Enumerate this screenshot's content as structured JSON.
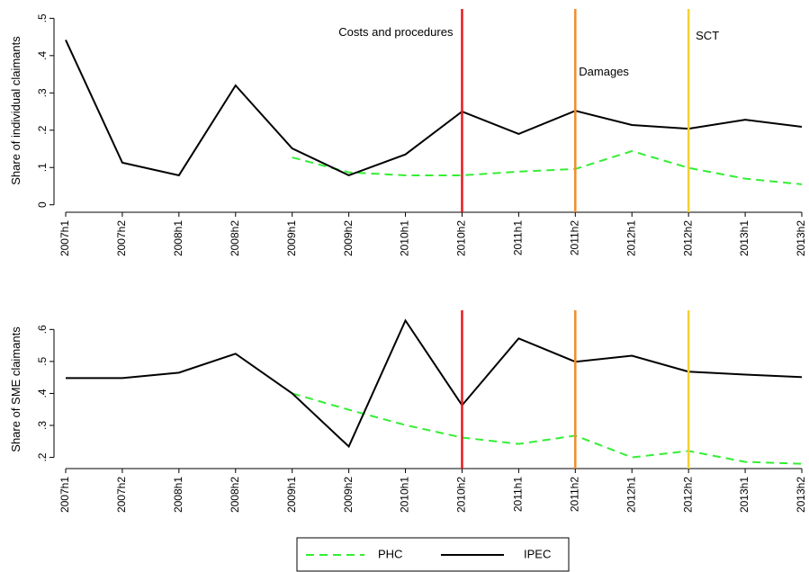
{
  "chart_data": [
    {
      "type": "line",
      "y_label": "Share of individual claimants",
      "categories": [
        "2007h1",
        "2007h2",
        "2008h1",
        "2008h2",
        "2009h1",
        "2009h2",
        "2010h1",
        "2010h2",
        "2011h1",
        "2011h2",
        "2012h1",
        "2012h2",
        "2013h1",
        "2013h2"
      ],
      "series": [
        {
          "name": "PHC",
          "color": "#33ee33",
          "dashed": true,
          "values": [
            null,
            null,
            null,
            null,
            0.127,
            0.087,
            0.079,
            0.079,
            0.089,
            0.096,
            0.144,
            0.099,
            0.07,
            0.055
          ]
        },
        {
          "name": "IPEC",
          "color": "#000000",
          "dashed": false,
          "values": [
            0.442,
            0.113,
            0.079,
            0.32,
            0.151,
            0.079,
            0.135,
            0.25,
            0.19,
            0.252,
            0.214,
            0.204,
            0.228,
            0.209
          ]
        }
      ],
      "ylim": [
        -0.02,
        0.525
      ],
      "yticks": [
        0,
        {
          "value": 0.1,
          "label": ".1"
        },
        {
          "value": 0.2,
          "label": ".2"
        },
        {
          "value": 0.3,
          "label": ".3"
        },
        {
          "value": 0.4,
          "label": ".4"
        },
        {
          "value": 0.5,
          "label": ".5"
        }
      ],
      "vlines": [
        {
          "at": "2010h2",
          "color": "#e8191d",
          "label": "Costs and procedures"
        },
        {
          "at": "2011h2",
          "color": "#f28c28",
          "label": "Damages"
        },
        {
          "at": "2012h2",
          "color": "#f5d033",
          "label": "SCT"
        }
      ],
      "legend": "bottom"
    },
    {
      "type": "line",
      "y_label": "Share of SME claimants",
      "categories": [
        "2007h1",
        "2007h2",
        "2008h1",
        "2008h2",
        "2009h1",
        "2009h2",
        "2010h1",
        "2010h2",
        "2011h1",
        "2011h2",
        "2012h1",
        "2012h2",
        "2013h1",
        "2013h2"
      ],
      "series": [
        {
          "color": "#33ee33",
          "dashed": true,
          "values": [
            null,
            null,
            null,
            null,
            0.4,
            0.349,
            0.301,
            0.262,
            0.242,
            0.268,
            0.2,
            0.22,
            0.186,
            0.18
          ]
        },
        {
          "color": "#000000",
          "dashed": false,
          "values": [
            0.448,
            0.448,
            0.465,
            0.524,
            0.4,
            0.234,
            0.628,
            0.363,
            0.572,
            0.499,
            0.518,
            0.468,
            0.459,
            0.451
          ]
        }
      ],
      "ylim": [
        0.165,
        0.66
      ],
      "yticks": [
        {
          "value": 0.2,
          "label": ".2"
        },
        {
          "value": 0.3,
          "label": ".3"
        },
        {
          "value": 0.4,
          "label": ".4"
        },
        {
          "value": 0.5,
          "label": ".5"
        },
        {
          "value": 0.6,
          "label": ".6"
        }
      ],
      "vlines": [
        {
          "at": "2010h2",
          "color": "#e8191d"
        },
        {
          "at": "2011h2",
          "color": "#f28c28"
        },
        {
          "at": "2012h2",
          "color": "#f5d033"
        }
      ]
    }
  ]
}
